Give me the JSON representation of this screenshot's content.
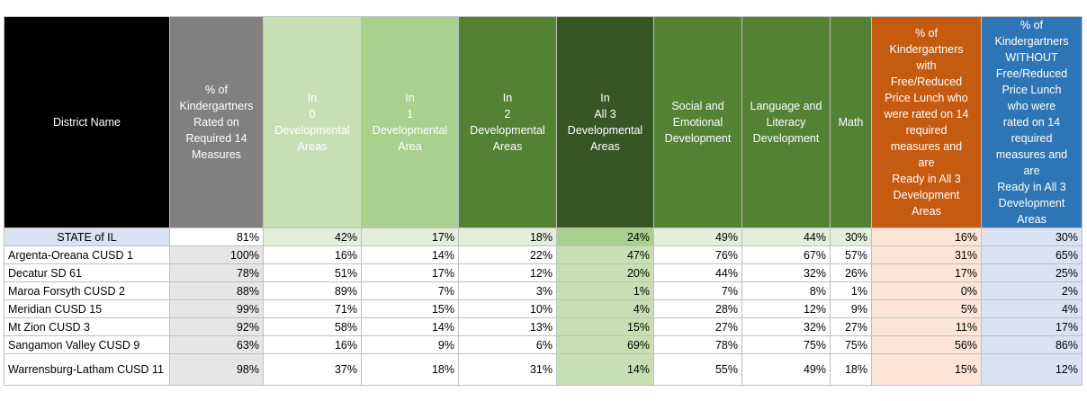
{
  "table": {
    "headers": {
      "district": "District Name",
      "rated": "% of\nKindergartners\nRated on\nRequired 14\nMeasures",
      "in0": "In\n0\nDevelopmental\nAreas",
      "in1": "In\n1\nDevelopmental\nArea",
      "in2": "In\n2\nDevelopmental\nAreas",
      "all3": "In\nAll 3\nDevelopmental\nAreas",
      "social": "Social and\nEmotional\nDevelopment",
      "language": "Language and\nLiteracy\nDevelopment",
      "math": "Math",
      "frl": "% of\nKindergartners\nwith\nFree/Reduced\nPrice Lunch who\nwere rated on 14\nrequired\nmeasures and\nare\nReady in All 3\nDevelopment\nAreas",
      "no_frl": "% of\nKindergartners\nWITHOUT\nFree/Reduced\nPrice Lunch\nwho were\nrated on 14\nrequired\nmeasures and\nare\nReady in All 3\nDevelopment\nAreas"
    },
    "rows": [
      {
        "name": "STATE of IL",
        "rated": "81%",
        "in0": "42%",
        "in1": "17%",
        "in2": "18%",
        "all3": "24%",
        "social": "49%",
        "language": "44%",
        "math": "30%",
        "frl": "16%",
        "no_frl": "30%"
      },
      {
        "name": "Argenta-Oreana CUSD 1",
        "rated": "100%",
        "in0": "16%",
        "in1": "14%",
        "in2": "22%",
        "all3": "47%",
        "social": "76%",
        "language": "67%",
        "math": "57%",
        "frl": "31%",
        "no_frl": "65%"
      },
      {
        "name": "Decatur SD 61",
        "rated": "78%",
        "in0": "51%",
        "in1": "17%",
        "in2": "12%",
        "all3": "20%",
        "social": "44%",
        "language": "32%",
        "math": "26%",
        "frl": "17%",
        "no_frl": "25%"
      },
      {
        "name": "Maroa Forsyth CUSD 2",
        "rated": "88%",
        "in0": "89%",
        "in1": "7%",
        "in2": "3%",
        "all3": "1%",
        "social": "7%",
        "language": "8%",
        "math": "1%",
        "frl": "0%",
        "no_frl": "2%"
      },
      {
        "name": "Meridian CUSD 15",
        "rated": "99%",
        "in0": "71%",
        "in1": "15%",
        "in2": "10%",
        "all3": "4%",
        "social": "28%",
        "language": "12%",
        "math": "9%",
        "frl": "5%",
        "no_frl": "4%"
      },
      {
        "name": "Mt Zion CUSD 3",
        "rated": "92%",
        "in0": "58%",
        "in1": "14%",
        "in2": "13%",
        "all3": "15%",
        "social": "27%",
        "language": "32%",
        "math": "27%",
        "frl": "11%",
        "no_frl": "17%"
      },
      {
        "name": "Sangamon Valley CUSD 9",
        "rated": "63%",
        "in0": "16%",
        "in1": "9%",
        "in2": "6%",
        "all3": "69%",
        "social": "78%",
        "language": "75%",
        "math": "75%",
        "frl": "56%",
        "no_frl": "86%"
      },
      {
        "name": "Warrensburg-Latham CUSD 11",
        "rated": "98%",
        "in0": "37%",
        "in1": "18%",
        "in2": "31%",
        "all3": "14%",
        "social": "55%",
        "language": "49%",
        "math": "18%",
        "frl": "15%",
        "no_frl": "12%"
      }
    ]
  }
}
